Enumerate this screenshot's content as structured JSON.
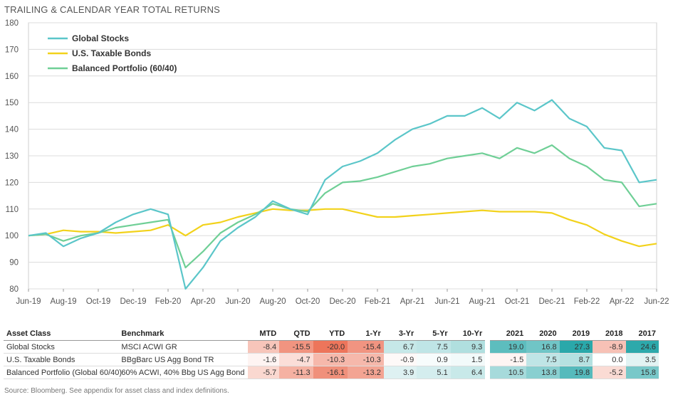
{
  "title": "TRAILING & CALENDAR YEAR TOTAL RETURNS",
  "source": "Source: Bloomberg. See appendix for asset class and index definitions.",
  "chart_data": {
    "type": "line",
    "ylim": [
      80,
      180
    ],
    "yticks": [
      "80",
      "90",
      "100",
      "110",
      "120",
      "130",
      "140",
      "150",
      "160",
      "170",
      "180"
    ],
    "xtick_labels": [
      "Jun-19",
      "Aug-19",
      "Oct-19",
      "Dec-19",
      "Feb-20",
      "Apr-20",
      "Jun-20",
      "Aug-20",
      "Oct-20",
      "Dec-20",
      "Feb-21",
      "Apr-21",
      "Jun-21",
      "Aug-21",
      "Oct-21",
      "Dec-21",
      "Feb-22",
      "Apr-22",
      "Jun-22"
    ],
    "x": [
      "Jun-19",
      "Jul-19",
      "Aug-19",
      "Sep-19",
      "Oct-19",
      "Nov-19",
      "Dec-19",
      "Jan-20",
      "Feb-20",
      "Mar-20",
      "Apr-20",
      "May-20",
      "Jun-20",
      "Jul-20",
      "Aug-20",
      "Sep-20",
      "Oct-20",
      "Nov-20",
      "Dec-20",
      "Jan-21",
      "Feb-21",
      "Mar-21",
      "Apr-21",
      "May-21",
      "Jun-21",
      "Jul-21",
      "Aug-21",
      "Sep-21",
      "Oct-21",
      "Nov-21",
      "Dec-21",
      "Jan-22",
      "Feb-22",
      "Mar-22",
      "Apr-22",
      "May-22",
      "Jun-22"
    ],
    "legend_position": "top-left",
    "grid": true,
    "series": [
      {
        "name": "Global Stocks",
        "color": "#5bc6c9",
        "values": [
          100,
          101,
          96,
          99,
          101,
          105,
          108,
          110,
          108,
          80,
          88,
          98,
          103,
          107,
          113,
          110,
          108,
          121,
          126,
          128,
          131,
          136,
          140,
          142,
          145,
          145,
          148,
          144,
          150,
          147,
          151,
          144,
          141,
          133,
          132,
          120,
          121
        ]
      },
      {
        "name": "U.S. Taxable Bonds",
        "color": "#f2d21b",
        "values": [
          100,
          100.5,
          102,
          101.5,
          101.5,
          101,
          101.5,
          102,
          104,
          100,
          104,
          105,
          107,
          108.5,
          110,
          109.5,
          109.5,
          110,
          110,
          108.5,
          107,
          107,
          107.5,
          108,
          108.5,
          109,
          109.5,
          109,
          109,
          109,
          108.5,
          106,
          104,
          100.5,
          98,
          96,
          97
        ]
      },
      {
        "name": "Balanced Portfolio (60/40)",
        "color": "#6fcf96",
        "values": [
          100,
          100.5,
          98,
          100,
          101,
          103,
          104,
          105,
          106,
          88,
          94,
          101,
          105,
          108,
          112,
          110,
          109,
          116,
          120,
          120.5,
          122,
          124,
          126,
          127,
          129,
          130,
          131,
          129,
          133,
          131,
          134,
          129,
          126,
          121,
          120,
          111,
          112
        ]
      }
    ]
  },
  "table": {
    "headers": [
      "Asset Class",
      "Benchmark",
      "MTD",
      "QTD",
      "YTD",
      "1-Yr",
      "3-Yr",
      "5-Yr",
      "10-Yr",
      "2021",
      "2020",
      "2019",
      "2018",
      "2017"
    ],
    "rows": [
      {
        "asset": "Global Stocks",
        "benchmark": "MSCI ACWI GR",
        "trailing": [
          "-8.4",
          "-15.5",
          "-20.0",
          "-15.4",
          "6.7",
          "7.5",
          "9.3"
        ],
        "calendar": [
          "19.0",
          "16.8",
          "27.3",
          "-8.9",
          "24.6"
        ]
      },
      {
        "asset": "U.S. Taxable Bonds",
        "benchmark": "BBgBarc US Agg Bond TR",
        "trailing": [
          "-1.6",
          "-4.7",
          "-10.3",
          "-10.3",
          "-0.9",
          "0.9",
          "1.5"
        ],
        "calendar": [
          "-1.5",
          "7.5",
          "8.7",
          "0.0",
          "3.5"
        ]
      },
      {
        "asset": "Balanced Portfolio (Global 60/40)",
        "benchmark": "60% ACWI, 40% Bbg US Agg Bond",
        "trailing": [
          "-5.7",
          "-11.3",
          "-16.1",
          "-13.2",
          "3.9",
          "5.1",
          "6.4"
        ],
        "calendar": [
          "10.5",
          "13.8",
          "19.8",
          "-5.2",
          "15.8"
        ]
      }
    ]
  }
}
